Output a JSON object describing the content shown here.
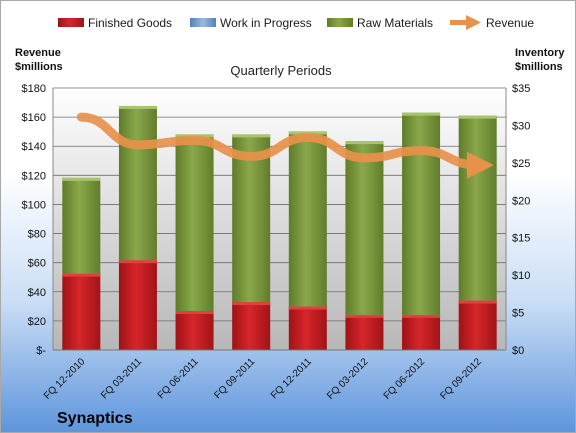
{
  "company": "Synaptics",
  "chart_data": {
    "type": "bar",
    "stacked": true,
    "title": "Quarterly Periods",
    "y_left_label": [
      "Revenue",
      "$millions"
    ],
    "y_right_label": [
      "Inventory",
      "$millions"
    ],
    "y_left_range": [
      0,
      180
    ],
    "y_left_ticks": [
      "$-",
      "$20",
      "$40",
      "$60",
      "$80",
      "$100",
      "$120",
      "$140",
      "$160",
      "$180"
    ],
    "y_right_range": [
      0,
      35
    ],
    "y_right_ticks": [
      "$0",
      "$5",
      "$10",
      "$15",
      "$20",
      "$25",
      "$30",
      "$35"
    ],
    "grid": true,
    "legend_position": "top",
    "categories": [
      "FQ 12-2010",
      "FQ 03-2011",
      "FQ 06-2011",
      "FQ 09-2011",
      "FQ 12-2011",
      "FQ 03-2012",
      "FQ 06-2012",
      "FQ 09-2012"
    ],
    "series": [
      {
        "name": "Finished Goods",
        "axis": "right",
        "color": "#c0191e",
        "values": [
          10.2,
          12.0,
          5.2,
          6.4,
          5.8,
          4.7,
          4.7,
          6.6
        ]
      },
      {
        "name": "Work in Progress",
        "axis": "right",
        "color": "#4f81bd",
        "values": [
          0,
          0,
          0,
          0,
          0,
          0,
          0,
          0
        ]
      },
      {
        "name": "Raw Materials",
        "axis": "right",
        "color": "#77933c",
        "values": [
          12.8,
          20.6,
          23.6,
          22.4,
          23.4,
          23.2,
          27.0,
          24.7
        ]
      },
      {
        "name": "Revenue",
        "axis": "left",
        "type": "line",
        "color": "#e8914a",
        "values": [
          160,
          141,
          144,
          133,
          146,
          132,
          137,
          127
        ]
      }
    ]
  }
}
